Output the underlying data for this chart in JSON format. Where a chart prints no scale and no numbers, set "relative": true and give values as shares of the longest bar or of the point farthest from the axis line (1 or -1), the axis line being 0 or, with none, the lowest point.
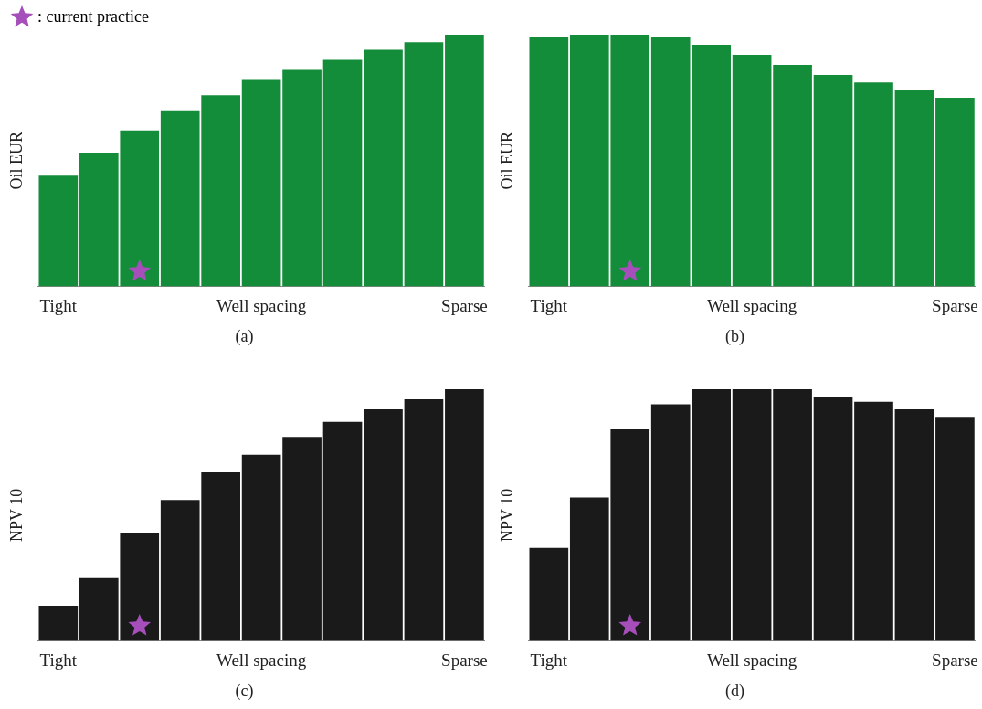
{
  "chart_data": [
    {
      "type": "bar",
      "title": "(a)",
      "ylabel": "Oil EUR",
      "relative": true,
      "legend": "top left",
      "categories": [
        "Tight",
        null,
        null,
        null,
        null,
        "Well spacing",
        null,
        null,
        null,
        null,
        "Sparse"
      ],
      "series": [
        {
          "color": "#138d3a",
          "values": [
            0.44,
            0.53,
            0.62,
            0.7,
            0.76,
            0.82,
            0.86,
            0.9,
            0.94,
            0.97,
            1
          ]
        },
        {
          "type": "scatter",
          "name": ": current practice",
          "color": "#a64fba",
          "marker": "star",
          "values": [
            null,
            null,
            0.06,
            null,
            null,
            null,
            null,
            null,
            null,
            null,
            null
          ]
        }
      ]
    },
    {
      "type": "bar",
      "title": "(b)",
      "ylabel": "Oil EUR",
      "relative": true,
      "categories": [
        "Tight",
        null,
        null,
        null,
        null,
        "Well spacing",
        null,
        null,
        null,
        null,
        "Sparse"
      ],
      "series": [
        {
          "color": "#138d3a",
          "values": [
            0.99,
            1,
            1,
            0.99,
            0.96,
            0.92,
            0.88,
            0.84,
            0.81,
            0.78,
            0.75
          ]
        },
        {
          "type": "scatter",
          "color": "#a64fba",
          "marker": "star",
          "values": [
            null,
            null,
            0.06,
            null,
            null,
            null,
            null,
            null,
            null,
            null,
            null
          ]
        }
      ]
    },
    {
      "type": "bar",
      "title": "(c)",
      "ylabel": "NPV 10",
      "relative": true,
      "categories": [
        "Tight",
        null,
        null,
        null,
        null,
        "Well spacing",
        null,
        null,
        null,
        null,
        "Sparse"
      ],
      "series": [
        {
          "color": "#1a1a1a",
          "values": [
            0.14,
            0.25,
            0.43,
            0.56,
            0.67,
            0.74,
            0.81,
            0.87,
            0.92,
            0.96,
            1
          ]
        },
        {
          "type": "scatter",
          "color": "#a64fba",
          "marker": "star",
          "values": [
            null,
            null,
            0.06,
            null,
            null,
            null,
            null,
            null,
            null,
            null,
            null
          ]
        }
      ]
    },
    {
      "type": "bar",
      "title": "(d)",
      "ylabel": "NPV 10",
      "relative": true,
      "categories": [
        "Tight",
        null,
        null,
        null,
        null,
        "Well spacing",
        null,
        null,
        null,
        null,
        "Sparse"
      ],
      "series": [
        {
          "color": "#1a1a1a",
          "values": [
            0.37,
            0.57,
            0.84,
            0.94,
            1,
            1,
            1,
            0.97,
            0.95,
            0.92,
            0.89
          ]
        },
        {
          "type": "scatter",
          "color": "#a64fba",
          "marker": "star",
          "values": [
            null,
            null,
            0.06,
            null,
            null,
            null,
            null,
            null,
            null,
            null,
            null
          ]
        }
      ]
    }
  ]
}
